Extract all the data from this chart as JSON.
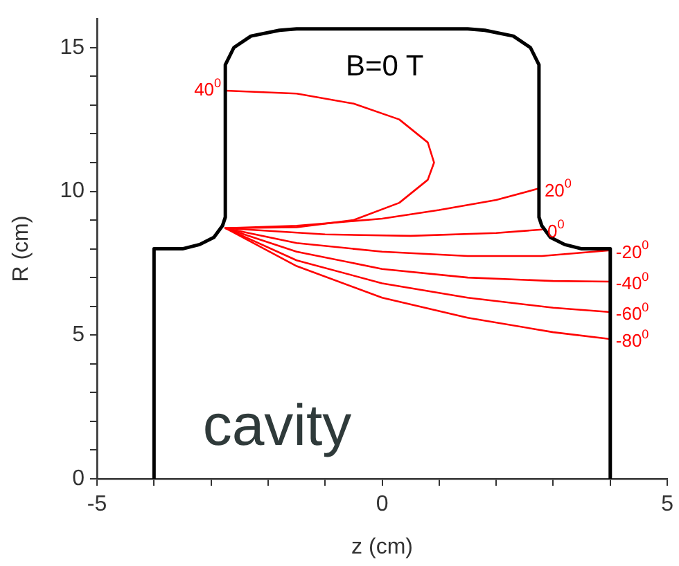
{
  "chart_data": {
    "type": "line",
    "xlabel": "z (cm)",
    "ylabel": "R (cm)",
    "xlim": [
      -5,
      5
    ],
    "ylim": [
      0,
      16
    ],
    "xticks": [
      -5,
      {
        "value": -4,
        "label": null
      },
      {
        "value": -3,
        "label": null
      },
      {
        "value": -2,
        "label": null
      },
      {
        "value": -1,
        "label": null
      },
      0,
      {
        "value": 1,
        "label": null
      },
      {
        "value": 2,
        "label": null
      },
      {
        "value": 3,
        "label": null
      },
      {
        "value": 4,
        "label": null
      },
      5
    ],
    "yticks": [
      0,
      {
        "value": 1,
        "label": null
      },
      {
        "value": 2,
        "label": null
      },
      {
        "value": 3,
        "label": null
      },
      {
        "value": 4,
        "label": null
      },
      5,
      {
        "value": 6,
        "label": null
      },
      {
        "value": 7,
        "label": null
      },
      {
        "value": 8,
        "label": null
      },
      {
        "value": 9,
        "label": null
      },
      10,
      {
        "value": 11,
        "label": null
      },
      {
        "value": 12,
        "label": null
      },
      {
        "value": 13,
        "label": null
      },
      {
        "value": 14,
        "label": null
      },
      15
    ],
    "grid": false,
    "legend": false,
    "marker": "none",
    "line_style": "solid",
    "annotations": [
      "B=0 T",
      "cavity"
    ],
    "series": [
      {
        "color": "#000000",
        "x": [
          -4,
          -4,
          -3.5,
          -3.2,
          -2.95,
          -2.8,
          -2.75,
          -2.75,
          -2.6,
          -2.3,
          -1.8,
          -1.5,
          1.5,
          1.8,
          2.3,
          2.6,
          2.75,
          2.75,
          2.8,
          2.95,
          3.2,
          3.5,
          4,
          4
        ],
        "values": [
          0,
          8,
          8,
          8.15,
          8.4,
          8.8,
          9.1,
          14.4,
          15,
          15.4,
          15.6,
          15.65,
          15.65,
          15.6,
          15.4,
          15,
          14.4,
          9.1,
          8.8,
          8.4,
          8.15,
          8,
          8,
          0
        ]
      },
      {
        "name": "40$^{0}$",
        "color": "#ff0000",
        "x": [
          -2.75,
          -1.5,
          -0.5,
          0.3,
          0.8,
          0.91,
          0.8,
          0.3,
          -0.5,
          -1.5,
          -2.75
        ],
        "values": [
          8.72,
          8.75,
          9,
          9.6,
          10.4,
          11,
          11.7,
          12.5,
          13.05,
          13.4,
          13.5
        ]
      },
      {
        "name": "20$^{0}$",
        "color": "#ff0000",
        "x": [
          -2.75,
          -1.5,
          0,
          1,
          2,
          2.75
        ],
        "values": [
          8.72,
          8.8,
          9.05,
          9.35,
          9.7,
          10.1
        ]
      },
      {
        "name": "0$^{0}$",
        "color": "#ff0000",
        "x": [
          -2.75,
          -1,
          0.5,
          2,
          2.8
        ],
        "values": [
          8.72,
          8.5,
          8.45,
          8.55,
          8.67
        ]
      },
      {
        "name": "-20$^{0}$",
        "color": "#ff0000",
        "x": [
          -2.75,
          -1.5,
          0,
          1.5,
          2.8,
          4
        ],
        "values": [
          8.72,
          8.2,
          7.9,
          7.75,
          7.75,
          7.95
        ]
      },
      {
        "name": "-40$^{0}$",
        "color": "#ff0000",
        "x": [
          -2.75,
          -1.5,
          0,
          1.5,
          3,
          4
        ],
        "values": [
          8.72,
          7.9,
          7.3,
          7,
          6.88,
          6.86
        ]
      },
      {
        "name": "-60$^{0}$",
        "color": "#ff0000",
        "x": [
          -2.75,
          -1.5,
          0,
          1.5,
          3,
          4
        ],
        "values": [
          8.72,
          7.6,
          6.8,
          6.3,
          5.95,
          5.8
        ]
      },
      {
        "name": "-80$^{0}$",
        "color": "#ff0000",
        "x": [
          -2.75,
          -1.5,
          0,
          1.5,
          3,
          4
        ],
        "values": [
          8.72,
          7.4,
          6.3,
          5.6,
          5.1,
          4.86
        ]
      }
    ]
  }
}
